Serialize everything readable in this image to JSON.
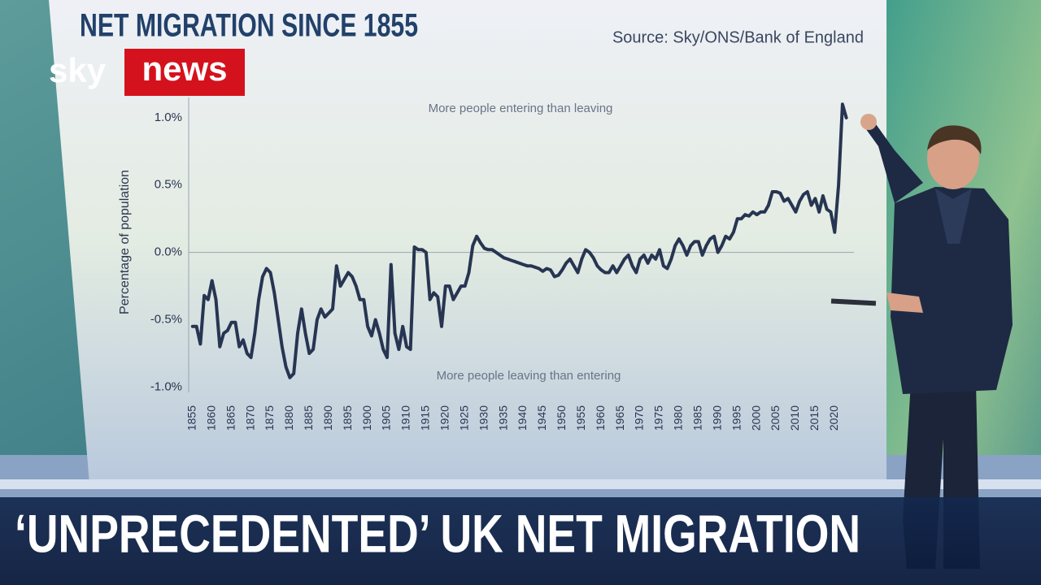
{
  "logo": {
    "sky": "sky",
    "news": "news"
  },
  "headline": "‘UNPRECEDENTED’ UK NET MIGRATION",
  "chart_data": {
    "type": "line",
    "title": "NET MIGRATION SINCE 1855",
    "source": "Source: Sky/ONS/Bank of England",
    "y_label": "Percentage of population",
    "annotations": [
      "More people entering than leaving",
      "More people leaving than entering"
    ],
    "x": [
      1855,
      1856,
      1857,
      1858,
      1859,
      1860,
      1861,
      1862,
      1863,
      1864,
      1865,
      1866,
      1867,
      1868,
      1869,
      1870,
      1871,
      1872,
      1873,
      1874,
      1875,
      1876,
      1877,
      1878,
      1879,
      1880,
      1881,
      1882,
      1883,
      1884,
      1885,
      1886,
      1887,
      1888,
      1889,
      1890,
      1891,
      1892,
      1893,
      1894,
      1895,
      1896,
      1897,
      1898,
      1899,
      1900,
      1901,
      1902,
      1903,
      1904,
      1905,
      1906,
      1907,
      1908,
      1909,
      1910,
      1911,
      1912,
      1913,
      1914,
      1915,
      1916,
      1917,
      1918,
      1919,
      1920,
      1921,
      1922,
      1923,
      1924,
      1925,
      1926,
      1927,
      1928,
      1929,
      1930,
      1931,
      1932,
      1933,
      1934,
      1935,
      1936,
      1937,
      1938,
      1939,
      1940,
      1941,
      1942,
      1943,
      1944,
      1945,
      1946,
      1947,
      1948,
      1949,
      1950,
      1951,
      1952,
      1953,
      1954,
      1955,
      1956,
      1957,
      1958,
      1959,
      1960,
      1961,
      1962,
      1963,
      1964,
      1965,
      1966,
      1967,
      1968,
      1969,
      1970,
      1971,
      1972,
      1973,
      1974,
      1975,
      1976,
      1977,
      1978,
      1979,
      1980,
      1981,
      1982,
      1983,
      1984,
      1985,
      1986,
      1987,
      1988,
      1989,
      1990,
      1991,
      1992,
      1993,
      1994,
      1995,
      1996,
      1997,
      1998,
      1999,
      2000,
      2001,
      2002,
      2003,
      2004,
      2005,
      2006,
      2007,
      2008,
      2009,
      2010,
      2011,
      2012,
      2013,
      2014,
      2015,
      2016,
      2017,
      2018,
      2019,
      2020,
      2021,
      2022,
      2023
    ],
    "series": [
      {
        "name": "Net migration",
        "color": "#273552",
        "values": [
          -0.55,
          -0.55,
          -0.68,
          -0.32,
          -0.35,
          -0.21,
          -0.35,
          -0.7,
          -0.6,
          -0.58,
          -0.52,
          -0.52,
          -0.7,
          -0.65,
          -0.75,
          -0.78,
          -0.6,
          -0.35,
          -0.18,
          -0.12,
          -0.15,
          -0.3,
          -0.5,
          -0.7,
          -0.85,
          -0.93,
          -0.9,
          -0.6,
          -0.42,
          -0.6,
          -0.75,
          -0.72,
          -0.5,
          -0.42,
          -0.48,
          -0.45,
          -0.42,
          -0.1,
          -0.25,
          -0.2,
          -0.15,
          -0.18,
          -0.25,
          -0.35,
          -0.35,
          -0.55,
          -0.62,
          -0.5,
          -0.6,
          -0.72,
          -0.78,
          -0.09,
          -0.6,
          -0.72,
          -0.55,
          -0.7,
          -0.72,
          0.04,
          0.02,
          0.02,
          0,
          -0.35,
          -0.3,
          -0.33,
          -0.55,
          -0.25,
          -0.25,
          -0.35,
          -0.3,
          -0.25,
          -0.25,
          -0.15,
          0.05,
          0.12,
          0.07,
          0.03,
          0.02,
          0.02,
          0,
          -0.02,
          -0.04,
          -0.05,
          -0.06,
          -0.07,
          -0.08,
          -0.09,
          -0.1,
          -0.1,
          -0.11,
          -0.12,
          -0.14,
          -0.12,
          -0.13,
          -0.18,
          -0.17,
          -0.13,
          -0.08,
          -0.05,
          -0.1,
          -0.15,
          -0.05,
          0.02,
          0,
          -0.04,
          -0.1,
          -0.13,
          -0.15,
          -0.15,
          -0.1,
          -0.15,
          -0.1,
          -0.05,
          -0.02,
          -0.1,
          -0.15,
          -0.05,
          -0.02,
          -0.08,
          -0.02,
          -0.05,
          0.02,
          -0.1,
          -0.12,
          -0.05,
          0.05,
          0.1,
          0.05,
          -0.02,
          0.05,
          0.08,
          0.08,
          -0.02,
          0.05,
          0.1,
          0.12,
          0,
          0.05,
          0.12,
          0.1,
          0.15,
          0.25,
          0.25,
          0.28,
          0.27,
          0.3,
          0.28,
          0.3,
          0.3,
          0.35,
          0.45,
          0.45,
          0.44,
          0.38,
          0.4,
          0.35,
          0.3,
          0.38,
          0.43,
          0.45,
          0.35,
          0.4,
          0.3,
          0.42,
          0.32,
          0.3,
          0.15,
          0.5,
          1.1,
          1.0
        ]
      }
    ],
    "xlim": [
      1854,
      2026
    ],
    "xticks": [
      1855,
      1860,
      1865,
      1870,
      1875,
      1880,
      1885,
      1890,
      1895,
      1900,
      1905,
      1910,
      1915,
      1920,
      1925,
      1930,
      1935,
      1940,
      1945,
      1950,
      1955,
      1960,
      1965,
      1970,
      1975,
      1980,
      1985,
      1990,
      1995,
      2000,
      2005,
      2010,
      2015,
      2020
    ],
    "ylim": [
      -1.1,
      1.15
    ],
    "yticks": [
      {
        "value": 1.0,
        "label": "1.0%"
      },
      {
        "value": 0.5,
        "label": "0.5%"
      },
      {
        "value": 0.0,
        "label": "0.0%"
      },
      {
        "value": -0.5,
        "label": "-0.5%"
      },
      {
        "value": -1.0,
        "label": "-1.0%"
      }
    ],
    "zero_line": true,
    "grid": false
  }
}
